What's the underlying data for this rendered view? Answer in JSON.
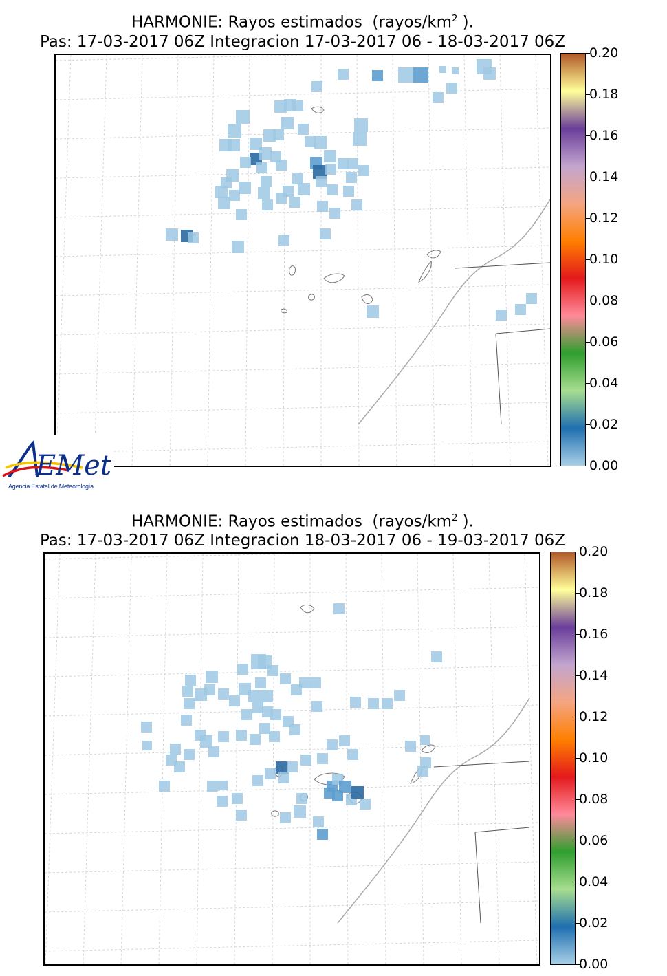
{
  "panels": [
    {
      "title_line1": "HARMONIE: Rayos estimados  (rayos/km",
      "title_sup": "2",
      "title_end": " ).",
      "title_line2": "Pas: 17-03-2017 06Z Integracion 17-03-2017 06 - 18-03-2017 06Z"
    },
    {
      "title_line1": "HARMONIE: Rayos estimados  (rayos/km",
      "title_sup": "2",
      "title_end": " ).",
      "title_line2": "Pas: 17-03-2017 06Z Integracion 18-03-2017 06 - 19-03-2017 06Z"
    }
  ],
  "colorbar": {
    "ticks": [
      "0.20",
      "0.18",
      "0.16",
      "0.14",
      "0.12",
      "0.10",
      "0.08",
      "0.06",
      "0.04",
      "0.02",
      "0.00"
    ],
    "colors_bottom_to_top": [
      "#a9d0e6",
      "#1f6fb0",
      "#a7dd8f",
      "#2f9e2f",
      "#ff8a9a",
      "#e31a1c",
      "#ff7f00",
      "#f4a582",
      "#c2a5cf",
      "#6a3d9a",
      "#ffff99",
      "#b15928"
    ]
  },
  "logo": {
    "wordmark": "AEMet",
    "caption": "Agencia Estatal de Meteorología"
  },
  "colors": {
    "lightning_light": "#9ec8e3",
    "lightning_mid": "#5d9fcf",
    "lightning_dark": "#2a6aa3",
    "coast": "#aaaaaa",
    "border": "#555555",
    "grid": "#d6d6d6"
  }
}
